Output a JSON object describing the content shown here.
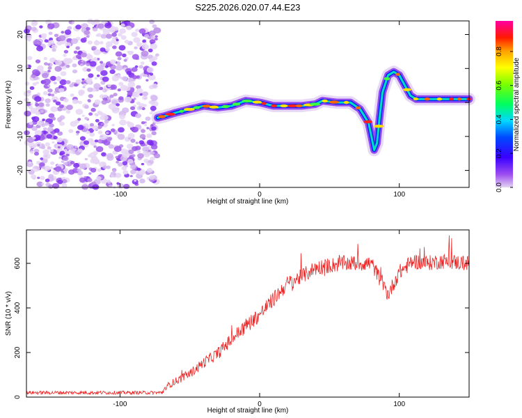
{
  "title": "S225.2026.020.07.44.E23",
  "chart_data": [
    {
      "type": "heatmap",
      "xlabel": "Height of straight line (km)",
      "ylabel": "Frequency (Hz)",
      "xlim": [
        -167,
        150
      ],
      "ylim": [
        -25,
        24
      ],
      "xticks": [
        -100,
        0,
        100
      ],
      "yticks": [
        -20,
        -10,
        0,
        10,
        20
      ],
      "noise_region_x": [
        -167,
        -73
      ],
      "ridge": {
        "x": [
          -73,
          -68,
          -60,
          -50,
          -40,
          -30,
          -20,
          -10,
          0,
          10,
          20,
          30,
          40,
          45,
          55,
          65,
          72,
          78,
          80,
          82,
          84,
          86,
          88,
          92,
          96,
          100,
          104,
          108,
          112,
          120,
          130,
          140,
          150
        ],
        "freq": [
          -4.5,
          -4,
          -3,
          -2,
          -1,
          -1.5,
          -1,
          0.5,
          0,
          -1,
          -1,
          -1,
          -0.5,
          0.5,
          0,
          0,
          -2,
          -6,
          -10,
          -14,
          -12,
          -4,
          3,
          8,
          9,
          8,
          5,
          2,
          1,
          1,
          1,
          1,
          1
        ]
      },
      "colorbar": {
        "label": "Normalized spectral amplitude",
        "range": [
          0,
          0.98
        ],
        "ticks": [
          0.0,
          0.2,
          0.4,
          0.6,
          0.8
        ]
      }
    },
    {
      "type": "line",
      "xlabel": "Height of straight line (km)",
      "ylabel": "SNR (10 * v/v)",
      "xlim": [
        -167,
        150
      ],
      "ylim": [
        0,
        750
      ],
      "xticks": [
        -100,
        0,
        100
      ],
      "yticks": [
        0,
        200,
        400,
        600
      ],
      "color": "#ee2222",
      "trend": {
        "x": [
          -167,
          -70,
          -65,
          -50,
          -40,
          -30,
          -20,
          -10,
          0,
          10,
          20,
          30,
          40,
          60,
          80,
          88,
          92,
          100,
          110,
          120,
          130,
          150
        ],
        "y": [
          20,
          20,
          55,
          105,
          155,
          195,
          260,
          320,
          370,
          440,
          510,
          540,
          580,
          600,
          600,
          510,
          460,
          560,
          610,
          600,
          610,
          600
        ]
      },
      "noise_amplitude": 35
    }
  ]
}
